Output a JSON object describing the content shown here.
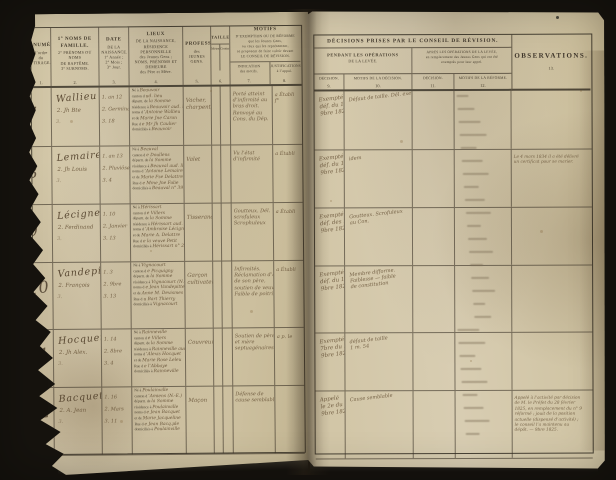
{
  "colors": {
    "background": "#16130e",
    "paper": "#d3c8a9",
    "paper_dark": "#b5a888",
    "rule_line": "#4a4337",
    "printed_ink": "#443b2c",
    "script_ink": "#6b573c"
  },
  "left_page": {
    "columns": [
      {
        "key": "numero",
        "lines": [
          "NUMÉRO",
          "d’ordre",
          "du",
          "TIRAGE."
        ],
        "num": "1."
      },
      {
        "key": "noms",
        "lines": [
          "1° NOMS DE FAMILLE.",
          "2° PRÉNOMS OU NOMS",
          "DE BAPTÊME.",
          "3° SURNOMS."
        ],
        "num": "2."
      },
      {
        "key": "date",
        "lines": [
          "DATE",
          "DE LA",
          "NAISSANCE.",
          "1° Année ;",
          "2° Mois ;",
          "3° Jour."
        ],
        "num": "3."
      },
      {
        "key": "lieux",
        "lines": [
          "LIEUX",
          "DE LA NAISSANCE,",
          "RÉSIDENCE PERSONNELLE",
          "des Jeunes Gens ;",
          "NOMS, PRÉNOMS ET DEMEURE",
          "des Père et Mère."
        ],
        "num": "4."
      },
      {
        "key": "professions",
        "lines": [
          "PROFESSIONS",
          "des",
          "JEUNES GENS."
        ],
        "num": "5."
      },
      {
        "key": "taille",
        "label": "TAILLE.",
        "sub": [
          "Mètre.",
          "Centim."
        ],
        "num": "6."
      },
      {
        "key": "motifs",
        "lines": [
          "MOTIFS",
          "D’EXEMPTION OU DE RÉFORME",
          "que les Jeunes Gens,",
          "ou ceux qui les représentent,",
          "se proposent de faire valoir devant",
          "LE CONSEIL DE RÉVISION."
        ],
        "sub": [
          {
            "lines": [
              "INDICATION",
              "des motifs."
            ],
            "num": "7."
          },
          {
            "lines": [
              "JUSTIFICATIONS",
              "à l’appui."
            ],
            "num": "8."
          }
        ]
      }
    ]
  },
  "right_page": {
    "title": "DÉCISIONS PRISES PAR LE CONSEIL DE RÉVISION.",
    "group1": {
      "lines": [
        "PENDANT LES OPÉRATIONS",
        "DE LA LEVÉE."
      ]
    },
    "group2": {
      "lines": [
        "APRÈS LES OPÉRATIONS DE LA LEVÉE,",
        "en remplacement des Jeunes Gens qui ont été",
        "exemptés pour leur appel."
      ]
    },
    "subs": [
      {
        "label": "DÉCISION.",
        "num": "9."
      },
      {
        "label": "MOTIFS DE LA DÉCISION.",
        "num": "10."
      },
      {
        "label": "DÉCISION.",
        "num": "11."
      },
      {
        "label": "MOTIFS DE LA RÉFORME.",
        "num": "12."
      }
    ],
    "observations": {
      "label": "OBSERVATIONS.",
      "num": "13."
    }
  },
  "rows": [
    {
      "num": "7",
      "name": [
        "Wallieu",
        "2. Jh Bte",
        "3."
      ],
      "date": [
        "1. an 12",
        "2. Germinal",
        "3. 18"
      ],
      "lieux": [
        {
          "p": "Né à",
          "v": "Beauvoir"
        },
        {
          "p": "canton d",
          "v": "ud. lieu"
        },
        {
          "p": "départt. de",
          "v": "la Somme"
        },
        {
          "p": "résidence à",
          "v": "Beauvoir aud. lieu"
        },
        {
          "p": "noms d",
          "v": "’Antoine Wallieu"
        },
        {
          "p": "et de",
          "v": "Marie Jne Caron"
        },
        {
          "p": "Rue d",
          "v": "e Mr Jh Caulier"
        },
        {
          "p": "domiciliés à",
          "v": "Beauvoir"
        }
      ],
      "prof": [
        "Vacher,",
        "charpentier"
      ],
      "motifs": [
        "Porté atteint",
        "d’infirmité au",
        "bras droit.",
        "Renvoyé au",
        "Cons. du Dép."
      ],
      "justif": [
        "a Établi",
        "f°"
      ],
      "dec1": [
        "Exempté",
        "déf. du 1er",
        "9bre 1824"
      ],
      "mot1": [
        "Défaut de taille. Dél. exempté"
      ],
      "obs": []
    },
    {
      "num": "8",
      "name": [
        "Lemaire",
        "2. Jh Louis",
        "3."
      ],
      "date": [
        "1. an 13",
        "2. Pluviôse",
        "3. 4"
      ],
      "lieux": [
        {
          "p": "Né à",
          "v": "Beauval"
        },
        {
          "p": "canton d",
          "v": "e Doullens"
        },
        {
          "p": "départt. de",
          "v": "la Somme"
        },
        {
          "p": "résidence à",
          "v": "Beauval aud. lieu"
        },
        {
          "p": "noms d",
          "v": "’Antoine Lemaire"
        },
        {
          "p": "et de",
          "v": "Marie Fse Delattre"
        },
        {
          "p": "Rue d",
          "v": "e Mme Jne Folie"
        },
        {
          "p": "domiciliés à",
          "v": "Beauval n° 39"
        }
      ],
      "prof": [
        "Valet"
      ],
      "motifs": [
        "Vu l’état",
        "d’infirmité"
      ],
      "justif": [
        "a Établi"
      ],
      "dec1": [
        "Exempté",
        "déf. du 1er",
        "9bre 1824"
      ],
      "mot1": [
        "idem"
      ],
      "obs": [
        "Le 4 mars 1834 il a été délivré",
        "un certificat pour se marier."
      ]
    },
    {
      "num": "9",
      "name": [
        "Lécigne",
        "2. Ferdinand",
        "3."
      ],
      "date": [
        "1. 10",
        "2. Janvier",
        "3. 13"
      ],
      "lieux": [
        {
          "p": "Né à",
          "v": "Hérissart"
        },
        {
          "p": "canton d",
          "v": "e Villers"
        },
        {
          "p": "départt. de",
          "v": "la Somme"
        },
        {
          "p": "résidence à",
          "v": "Hérissart aud. lieu"
        },
        {
          "p": "noms d",
          "v": "’Ambroise Lécigne"
        },
        {
          "p": "et de",
          "v": "Marie A. Delattre"
        },
        {
          "p": "Rue d",
          "v": "e la veuve Petit"
        },
        {
          "p": "domiciliés à",
          "v": "Hérissart n° 21"
        }
      ],
      "prof": [
        "Tisserand"
      ],
      "motifs": [
        "Goutteux. Dél.",
        "scrofuleux",
        "Scrophuleux"
      ],
      "justif": [
        "a Établi"
      ],
      "dec1": [
        "Exempté",
        "déf. des 1er",
        "9bre 1824"
      ],
      "mot1": [
        "Goutteux. Scrofuleux",
        "au Con."
      ],
      "obs": []
    },
    {
      "num": "10",
      "name": [
        "Vandepitte",
        "2. François",
        "3."
      ],
      "date": [
        "1. 3",
        "2. 9bre",
        "3. 13"
      ],
      "lieux": [
        {
          "p": "Né à",
          "v": "Vignacourt"
        },
        {
          "p": "canton d",
          "v": "e Picquigny"
        },
        {
          "p": "départt. de",
          "v": "la Somme"
        },
        {
          "p": "résidence à",
          "v": "Vignacourt (N.-E.)"
        },
        {
          "p": "noms d",
          "v": "e Jean Vandepitte"
        },
        {
          "p": "et de",
          "v": "Anne M. Devismes"
        },
        {
          "p": "Rue d",
          "v": "u Bart Thierry"
        },
        {
          "p": "domiciliés à",
          "v": "Vignacourt"
        }
      ],
      "prof": [
        "Garçon",
        "cultivateur"
      ],
      "motifs": [
        "Infirmités.",
        "Réclamation d’aide",
        "de son père,",
        "soutien de veuve.",
        "Faible de poitrine"
      ],
      "justif": [
        "a Établi"
      ],
      "dec1": [
        "Exempté",
        "déf. du 1er",
        "9bre 1824"
      ],
      "mot1": [
        "Membre difforme.",
        "Faiblesse — faible",
        "de constitution"
      ],
      "obs": []
    },
    {
      "num": "11",
      "name": [
        "Hocquet",
        "2. Jh Alex.",
        "3."
      ],
      "date": [
        "1. 14",
        "2. 8bre",
        "3. 4"
      ],
      "lieux": [
        {
          "p": "Né à",
          "v": "Rainneville"
        },
        {
          "p": "canton d",
          "v": "e Villers"
        },
        {
          "p": "départt. de",
          "v": "la Somme"
        },
        {
          "p": "résidence à",
          "v": "Rainneville aud. lieu"
        },
        {
          "p": "noms d",
          "v": "’Alexis Hocquet"
        },
        {
          "p": "et de",
          "v": "Marie Rose Leleu"
        },
        {
          "p": "Rue d",
          "v": "e l’Abbaye"
        },
        {
          "p": "domiciliés à",
          "v": "Rainneville"
        }
      ],
      "prof": [
        "Couvreur"
      ],
      "motifs": [
        "Soutien de père",
        "et mère",
        "septuagénaires"
      ],
      "justif": [
        "a p. le"
      ],
      "dec1": [
        "Exempté du",
        "7bre du 1er",
        "9bre 1824"
      ],
      "mot1": [
        "défaut de taille",
        "1 m. 54"
      ],
      "obs": []
    },
    {
      "num": "12",
      "name": [
        "Bacquet",
        "2. A. Jean",
        "3."
      ],
      "date": [
        "1. 16",
        "2. Mars",
        "3. 11"
      ],
      "lieux": [
        {
          "p": "Né à",
          "v": "Poulainville"
        },
        {
          "p": "canton d",
          "v": "’Amiens (N.-E.)"
        },
        {
          "p": "départt. de",
          "v": "la Somme"
        },
        {
          "p": "résidence à",
          "v": "Poulainville"
        },
        {
          "p": "noms d",
          "v": "e Jean Bacquet"
        },
        {
          "p": "et de",
          "v": "Marie Jacqueline"
        },
        {
          "p": "Rue d",
          "v": "e Jean Bacq.ple"
        },
        {
          "p": "domiciliés à",
          "v": "Poulainville"
        }
      ],
      "prof": [
        "Maçon"
      ],
      "motifs": [
        "Défense de",
        "cause semblable"
      ],
      "justif": [],
      "dec1": [
        "Appelé",
        "le 2e du 1er",
        "9bre 1824"
      ],
      "mot1": [
        "Cause semblable"
      ],
      "obs": [
        "Appelé à l’activité par décision",
        "de M. le Préfet du 28 février",
        "1825, en remplacement du n° 9",
        "réformé ; jouit de la position",
        "actuelle (dispensé d’activité) ;",
        "le conseil l’a maintenu au",
        "dépôt. — 9bre 1825."
      ]
    }
  ]
}
